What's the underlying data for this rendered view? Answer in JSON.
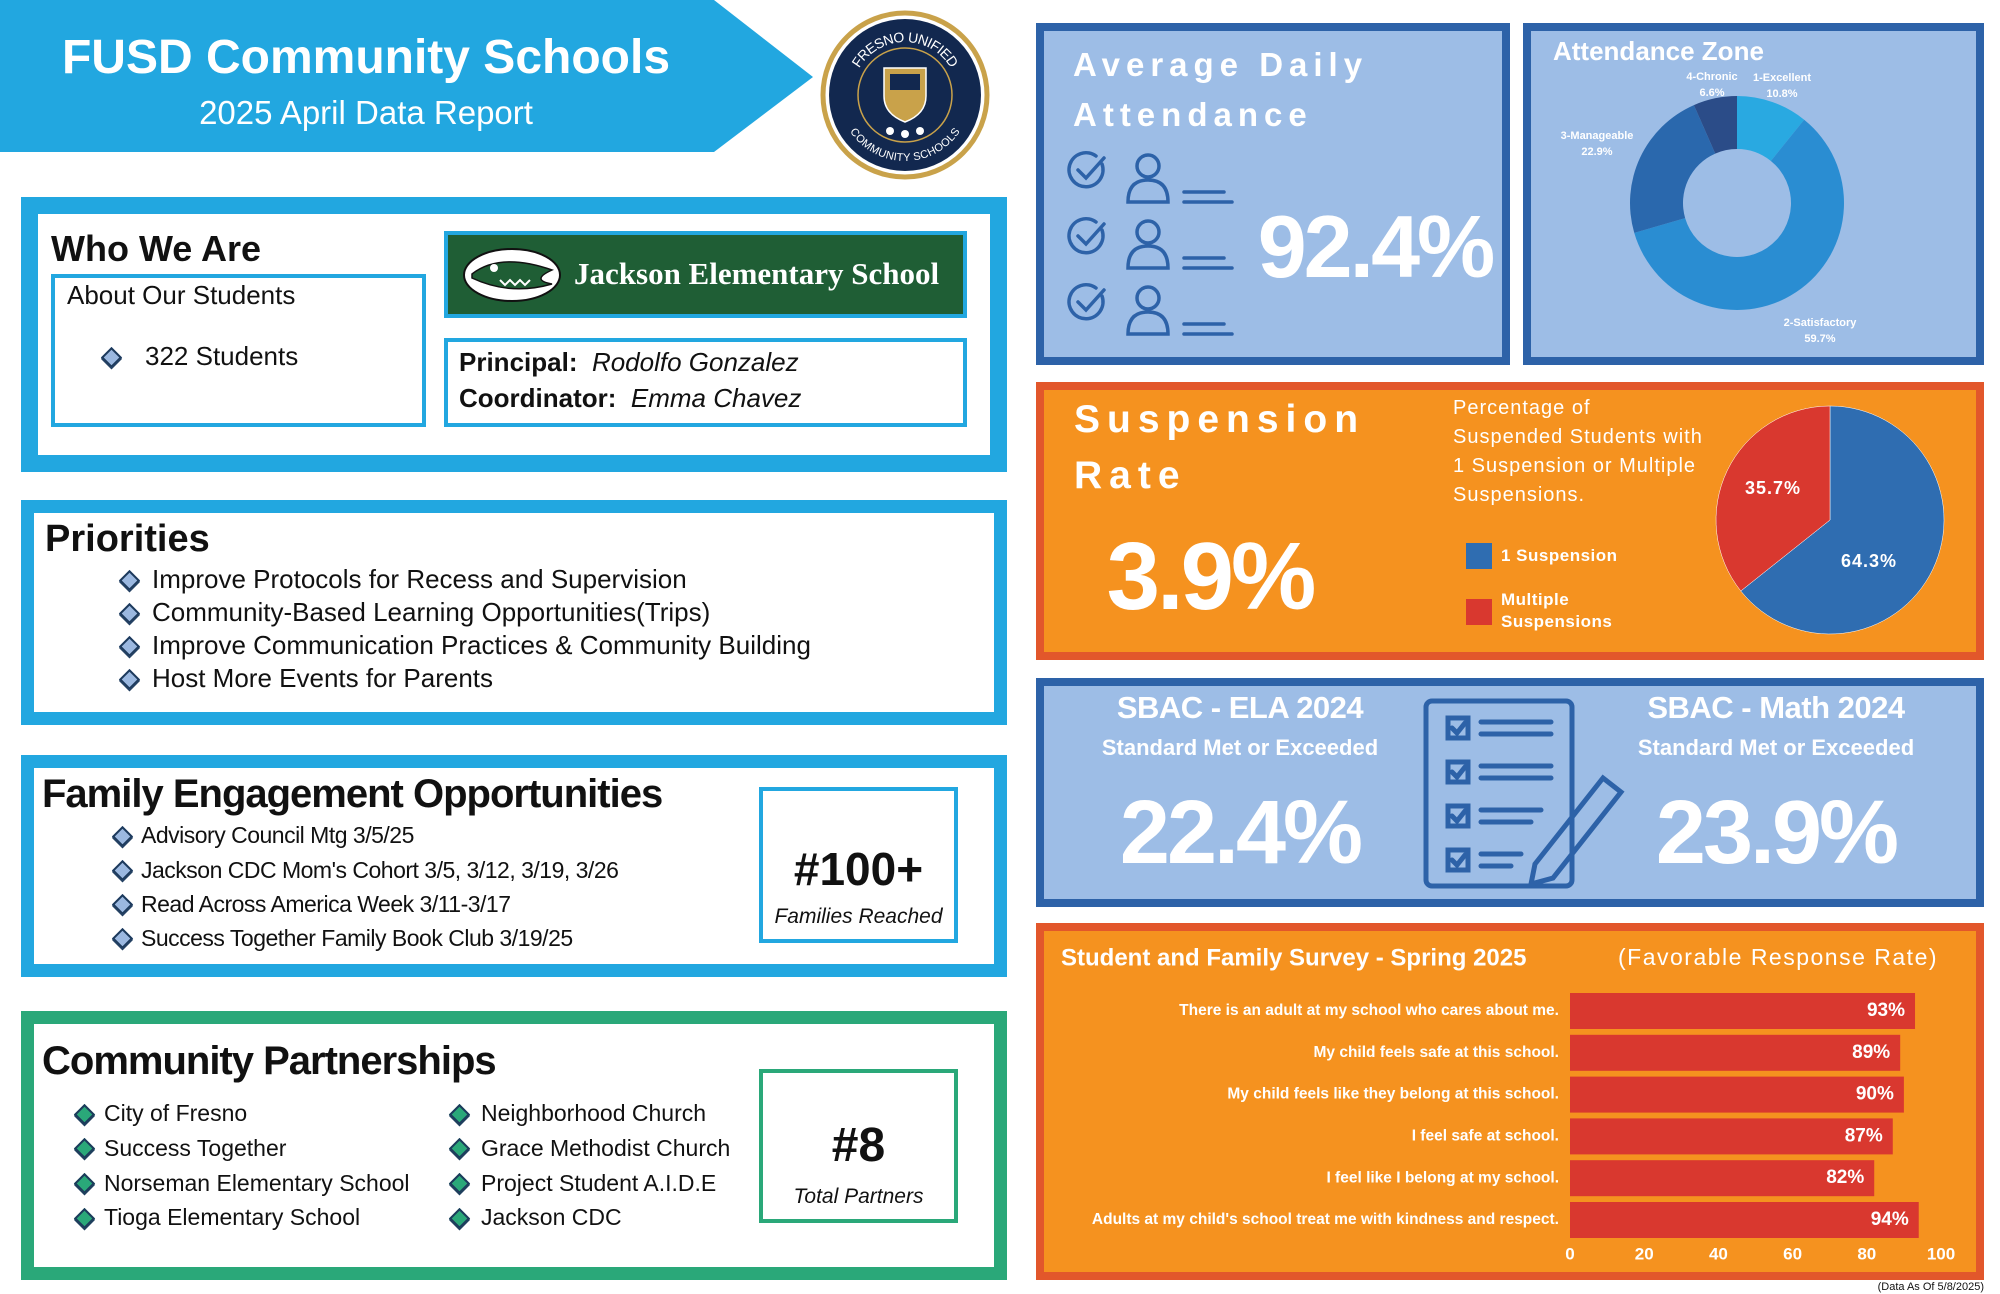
{
  "header": {
    "title": "FUSD Community Schools",
    "subtitle": "2025 April Data Report"
  },
  "logo": {
    "top_text": "FRESNO UNIFIED",
    "bottom_text": "COMMUNITY SCHOOLS"
  },
  "who_we_are": {
    "title": "Who We Are",
    "about_title": "About Our Students",
    "students": "322 Students",
    "school": "Jackson Elementary School",
    "principal_label": "Principal:",
    "principal": "Rodolfo Gonzalez",
    "coordinator_label": "Coordinator:",
    "coordinator": "Emma Chavez"
  },
  "priorities": {
    "title": "Priorities",
    "items": [
      "Improve Protocols for Recess and Supervision",
      "Community-Based Learning Opportunities(Trips)",
      "Improve Communication Practices & Community Building",
      "Host More Events for Parents"
    ]
  },
  "family_engagement": {
    "title": "Family Engagement Opportunities",
    "items": [
      "Advisory Council Mtg 3/5/25",
      "Jackson CDC Mom's Cohort 3/5, 3/12, 3/19, 3/26",
      "Read Across America Week 3/11-3/17",
      "Success Together Family Book Club 3/19/25"
    ],
    "stat": "#100+",
    "stat_label": "Families Reached"
  },
  "partnerships": {
    "title": "Community Partnerships",
    "items": [
      "City of Fresno",
      "Success Together",
      "Norseman Elementary School",
      "Tioga Elementary School",
      "Neighborhood Church",
      "Grace Methodist Church",
      "Project Student A.I.D.E",
      "Jackson CDC"
    ],
    "stat": "#8",
    "stat_label": "Total Partners"
  },
  "attendance": {
    "title": "Average Daily Attendance",
    "value": "92.4%"
  },
  "suspension": {
    "title": "Suspension Rate",
    "value": "3.9%"
  },
  "sbac": [
    {
      "title": "SBAC - ELA 2024",
      "subtitle": "Standard Met or Exceeded",
      "value": "22.4%"
    },
    {
      "title": "SBAC - Math 2024",
      "subtitle": "Standard Met or Exceeded",
      "value": "23.9%"
    }
  ],
  "chart_data": [
    {
      "type": "donut",
      "title": "Attendance Zone",
      "categories": [
        "1-Excellent",
        "2-Satisfactory",
        "3-Manageable",
        "4-Chronic"
      ],
      "values": [
        10.8,
        59.7,
        22.9,
        6.6
      ],
      "value_labels": [
        "10.8%",
        "59.7%",
        "22.9%",
        "6.6%"
      ],
      "colors": [
        "#29a9e1",
        "#2a8dd2",
        "#2a68ad",
        "#2b4c88"
      ]
    },
    {
      "type": "pie",
      "title": "Percentage of Suspended Students with 1 Suspension or Multiple Suspensions.",
      "categories": [
        "1 Suspension",
        "Multiple Suspensions"
      ],
      "values": [
        64.3,
        35.7
      ],
      "value_labels": [
        "64.3%",
        "35.7%"
      ],
      "colors": [
        "#2f6db1",
        "#d9382f"
      ]
    },
    {
      "type": "bar",
      "orientation": "horizontal",
      "title": "Student and Family Survey - Spring 2025",
      "subtitle": "(Favorable Response Rate)",
      "categories": [
        "There is an adult at my school who cares about me.",
        "My child feels safe at this school.",
        "My child feels like they belong at this school.",
        "I feel safe at school.",
        "I feel like I belong at my school.",
        "Adults at my child's school treat me with kindness and respect."
      ],
      "values": [
        93,
        89,
        90,
        87,
        82,
        94
      ],
      "value_labels": [
        "93%",
        "89%",
        "90%",
        "87%",
        "82%",
        "94%"
      ],
      "color": "#d9382f",
      "xlim": [
        0,
        100
      ],
      "xticks": [
        0,
        20,
        40,
        60,
        80,
        100
      ]
    }
  ],
  "footnote": "(Data As Of 5/8/2025)"
}
